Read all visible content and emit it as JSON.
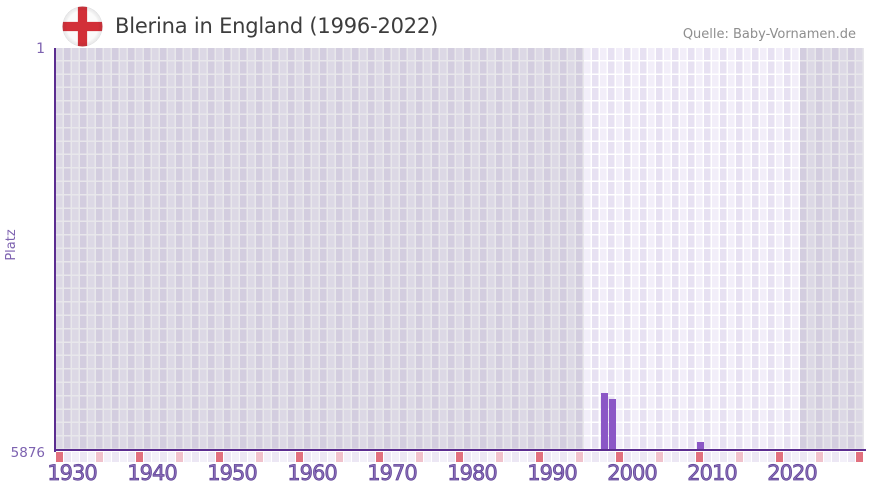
{
  "header": {
    "title": "Blerina in England (1996-2022)",
    "flag_icon": "england-flag-icon",
    "source": "Quelle: Baby-Vornamen.de"
  },
  "chart_data": {
    "type": "bar",
    "title": "Blerina in England (1996-2022)",
    "xlabel": "",
    "ylabel": "Platz",
    "y_axis": {
      "top_label": "1",
      "bottom_label": "5876",
      "min": 1,
      "max": 5876,
      "inverted": true
    },
    "x_axis": {
      "range_start": 1928,
      "range_end": 2028,
      "tick_labels": [
        "1930",
        "1940",
        "1950",
        "1960",
        "1970",
        "1980",
        "1990",
        "2000",
        "2010",
        "2020"
      ],
      "major_marker_years": [
        1928,
        1938,
        1948,
        1958,
        1968,
        1978,
        1988,
        1998,
        2008,
        2018,
        2028
      ],
      "minor_marker_years": [
        1933,
        1943,
        1953,
        1963,
        1973,
        1983,
        1993,
        2003,
        2013,
        2023
      ]
    },
    "highlight_years": {
      "from": 1994,
      "to": 2020
    },
    "series": [
      {
        "name": "Platz",
        "points": [
          {
            "year": 1996,
            "platz": 5040
          },
          {
            "year": 1997,
            "platz": 5130
          },
          {
            "year": 2008,
            "platz": 5755
          }
        ]
      }
    ],
    "grid": true,
    "legend": "none",
    "colors": {
      "bar": "#8b57c6",
      "axis_line": "#5b2d90",
      "tick_text": "#8b6fb8",
      "marker_major": "#e1707e",
      "marker_minor": "#f0c2cc",
      "strip_cell_a": "#f3f0f9",
      "strip_cell_b": "#ece7f4",
      "plot_cell_a": "#f2eef9",
      "plot_cell_b": "#e7e1f2",
      "outside_overlay": "rgba(90,85,110,0.14)",
      "title_text": "#3d3d3d",
      "source_text": "#8e8e8e",
      "flag_cross": "#d22f38"
    }
  }
}
